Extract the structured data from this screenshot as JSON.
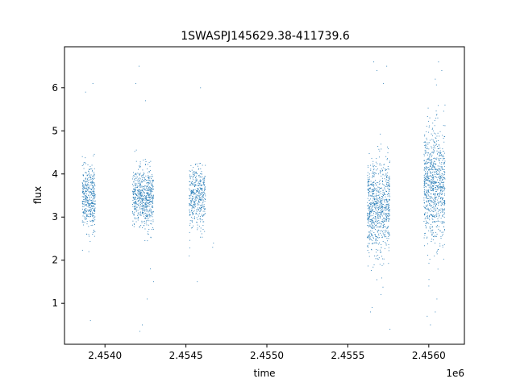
{
  "chart_data": {
    "type": "scatter",
    "title": "1SWASPJ145629.38-411739.6",
    "xlabel": "time",
    "ylabel": "flux",
    "x_offset_label": "1e6",
    "x_tick_labels": [
      "2.4540",
      "2.4545",
      "2.4550",
      "2.4555",
      "2.4560"
    ],
    "x_ticks": [
      2454000,
      2454500,
      2455000,
      2455500,
      2456000
    ],
    "y_ticks": [
      1,
      2,
      3,
      4,
      5,
      6
    ],
    "y_tick_labels": [
      "1",
      "2",
      "3",
      "4",
      "5",
      "6"
    ],
    "xlim": [
      2453750,
      2456220
    ],
    "ylim": [
      0.05,
      6.95
    ],
    "grid": false,
    "marker_color": "#1f77b4",
    "series": [
      {
        "clusters": [
          {
            "x_range": [
              2453860,
              2453940
            ],
            "mean_flux": 3.45,
            "spread": 0.35,
            "points": 420
          },
          {
            "x_range": [
              2454170,
              2454300
            ],
            "mean_flux": 3.45,
            "spread": 0.35,
            "points": 620
          },
          {
            "x_range": [
              2454520,
              2454620
            ],
            "mean_flux": 3.45,
            "spread": 0.35,
            "points": 420
          },
          {
            "x_range": [
              2455620,
              2455760
            ],
            "mean_flux": 3.2,
            "spread": 0.55,
            "points": 820
          },
          {
            "x_range": [
              2455970,
              2456100
            ],
            "mean_flux": 3.75,
            "spread": 0.65,
            "points": 880
          }
        ],
        "outliers": [
          [
            2453880,
            5.9
          ],
          [
            2453925,
            6.1
          ],
          [
            2453910,
            0.6
          ],
          [
            2453900,
            2.2
          ],
          [
            2454190,
            6.1
          ],
          [
            2454210,
            6.5
          ],
          [
            2454250,
            5.7
          ],
          [
            2454230,
            0.5
          ],
          [
            2454215,
            0.35
          ],
          [
            2454260,
            1.1
          ],
          [
            2454300,
            1.5
          ],
          [
            2454280,
            1.8
          ],
          [
            2454590,
            6.0
          ],
          [
            2454570,
            1.5
          ],
          [
            2454520,
            2.1
          ],
          [
            2454665,
            2.3
          ],
          [
            2454670,
            2.4
          ],
          [
            2455660,
            6.6
          ],
          [
            2455680,
            6.4
          ],
          [
            2455740,
            6.5
          ],
          [
            2455720,
            6.1
          ],
          [
            2455640,
            0.8
          ],
          [
            2455650,
            0.9
          ],
          [
            2455705,
            1.2
          ],
          [
            2455760,
            0.4
          ],
          [
            2456060,
            6.6
          ],
          [
            2456080,
            6.4
          ],
          [
            2456040,
            6.2
          ],
          [
            2456010,
            0.5
          ],
          [
            2456040,
            0.8
          ],
          [
            2456050,
            1.1
          ],
          [
            2456000,
            1.4
          ],
          [
            2456100,
            5.6
          ],
          [
            2455990,
            0.7
          ]
        ]
      }
    ]
  }
}
